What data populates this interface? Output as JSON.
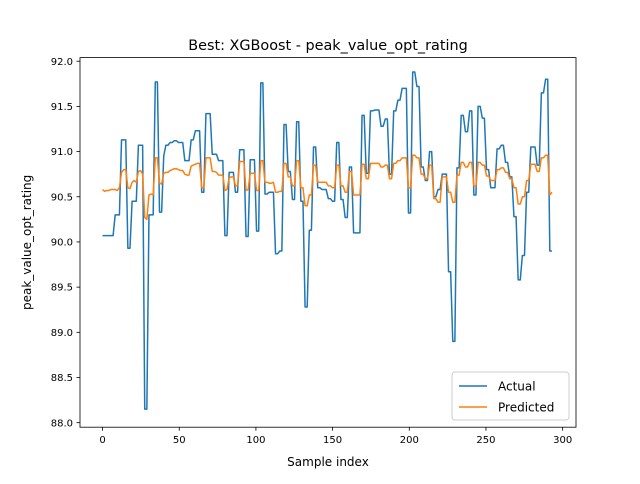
{
  "chart_data": {
    "type": "line",
    "title": "Best: XGBoost - peak_value_opt_rating",
    "xlabel": "Sample index",
    "ylabel": "peak_value_opt_rating",
    "xlim": [
      -14.7,
      308.7
    ],
    "ylim": [
      87.95,
      92.04
    ],
    "xticks": [
      0,
      50,
      100,
      150,
      200,
      250,
      300
    ],
    "xtick_labels": [
      "0",
      "50",
      "100",
      "150",
      "200",
      "250",
      "300"
    ],
    "yticks": [
      88.0,
      88.5,
      89.0,
      89.5,
      90.0,
      90.5,
      91.0,
      91.5,
      92.0
    ],
    "ytick_labels": [
      "88.0",
      "88.5",
      "89.0",
      "89.5",
      "90.0",
      "90.5",
      "91.0",
      "91.5",
      "92.0"
    ],
    "grid": false,
    "legend_position": "bottom-right",
    "series": [
      {
        "name": "Actual",
        "color": "#1f77b4",
        "values": [
          90.07,
          90.07,
          90.07,
          90.07,
          90.07,
          90.07,
          90.3,
          90.3,
          90.3,
          91.13,
          91.13,
          91.13,
          89.93,
          89.93,
          90.45,
          90.45,
          90.45,
          91.07,
          91.07,
          91.07,
          88.15,
          88.15,
          90.3,
          90.3,
          90.3,
          91.77,
          91.77,
          90.33,
          90.33,
          90.95,
          91.07,
          91.07,
          91.1,
          91.1,
          91.12,
          91.12,
          91.1,
          91.1,
          91.1,
          90.9,
          90.9,
          90.9,
          91.13,
          91.13,
          91.23,
          91.23,
          91.23,
          90.55,
          90.55,
          91.42,
          91.42,
          91.42,
          90.97,
          90.97,
          90.97,
          90.9,
          90.9,
          90.9,
          90.07,
          90.07,
          90.77,
          90.77,
          90.77,
          90.55,
          90.55,
          91.02,
          91.02,
          91.02,
          90.06,
          90.06,
          90.91,
          90.91,
          90.91,
          90.12,
          90.12,
          91.76,
          91.76,
          90.53,
          90.53,
          90.55,
          90.55,
          90.55,
          89.87,
          89.87,
          89.9,
          89.9,
          91.3,
          91.3,
          90.78,
          90.78,
          90.47,
          90.47,
          91.33,
          91.33,
          90.45,
          90.45,
          89.28,
          89.28,
          90.13,
          90.13,
          91.05,
          91.05,
          90.6,
          90.6,
          90.58,
          90.58,
          90.58,
          90.48,
          90.48,
          90.45,
          90.45,
          91.1,
          91.1,
          90.47,
          90.47,
          90.27,
          90.27,
          90.83,
          90.83,
          90.1,
          90.1,
          90.1,
          90.1,
          91.4,
          91.4,
          90.76,
          90.76,
          91.45,
          91.45,
          91.46,
          91.46,
          91.46,
          91.28,
          91.28,
          91.36,
          91.36,
          90.75,
          90.75,
          91.45,
          91.45,
          91.57,
          91.57,
          91.7,
          91.7,
          91.7,
          90.32,
          90.32,
          91.88,
          91.88,
          91.72,
          91.72,
          90.83,
          90.83,
          90.68,
          90.68,
          91.0,
          91.0,
          90.5,
          90.5,
          90.58,
          90.58,
          90.75,
          90.75,
          90.75,
          89.67,
          89.67,
          88.9,
          88.9,
          90.82,
          90.82,
          91.4,
          91.4,
          91.22,
          91.22,
          91.45,
          91.45,
          90.52,
          90.52,
          91.5,
          91.5,
          91.37,
          91.37,
          90.8,
          90.8,
          90.6,
          90.6,
          90.6,
          91.03,
          91.03,
          91.07,
          91.07,
          90.88,
          90.88,
          90.72,
          90.72,
          90.28,
          90.28,
          89.58,
          89.58,
          89.85,
          89.85,
          90.55,
          90.55,
          91.05,
          91.05,
          91.05,
          90.85,
          90.85,
          91.65,
          91.65,
          91.8,
          91.8,
          89.9,
          89.9
        ]
      },
      {
        "name": "Predicted",
        "color": "#ff7f0e",
        "values": [
          90.58,
          90.56,
          90.57,
          90.57,
          90.58,
          90.58,
          90.58,
          90.57,
          90.6,
          90.77,
          90.8,
          90.8,
          90.6,
          90.59,
          90.66,
          90.68,
          90.66,
          90.78,
          90.79,
          90.75,
          90.27,
          90.25,
          90.52,
          90.53,
          90.52,
          90.93,
          90.93,
          90.65,
          90.64,
          90.76,
          90.77,
          90.77,
          90.79,
          90.8,
          90.81,
          90.81,
          90.8,
          90.79,
          90.79,
          90.75,
          90.74,
          90.74,
          90.84,
          90.85,
          90.86,
          90.87,
          90.87,
          90.6,
          90.6,
          90.93,
          90.93,
          90.93,
          90.78,
          90.78,
          90.77,
          90.74,
          90.74,
          90.74,
          90.57,
          90.58,
          90.71,
          90.72,
          90.72,
          90.62,
          90.62,
          90.89,
          90.89,
          90.89,
          90.57,
          90.58,
          90.76,
          90.76,
          90.76,
          90.57,
          90.57,
          90.9,
          90.9,
          90.66,
          90.66,
          90.65,
          90.65,
          90.66,
          90.55,
          90.55,
          90.56,
          90.56,
          90.87,
          90.87,
          90.72,
          90.72,
          90.62,
          90.62,
          90.9,
          90.9,
          90.6,
          90.6,
          90.4,
          90.4,
          90.52,
          90.52,
          90.85,
          90.85,
          90.66,
          90.66,
          90.66,
          90.66,
          90.66,
          90.62,
          90.62,
          90.6,
          90.6,
          90.85,
          90.85,
          90.62,
          90.62,
          90.55,
          90.55,
          90.78,
          90.78,
          90.52,
          90.52,
          90.52,
          90.52,
          90.86,
          90.86,
          90.7,
          90.7,
          90.87,
          90.87,
          90.87,
          90.87,
          90.87,
          90.83,
          90.83,
          90.85,
          90.85,
          90.7,
          90.7,
          90.87,
          90.87,
          90.9,
          90.9,
          90.93,
          90.93,
          90.93,
          90.6,
          90.6,
          90.96,
          90.96,
          90.93,
          90.93,
          90.75,
          90.75,
          90.7,
          90.7,
          90.85,
          90.85,
          90.48,
          90.48,
          90.44,
          90.44,
          90.72,
          90.72,
          90.72,
          90.55,
          90.55,
          90.44,
          90.44,
          90.74,
          90.74,
          90.88,
          90.88,
          90.83,
          90.83,
          90.88,
          90.88,
          90.62,
          90.62,
          90.88,
          90.88,
          90.85,
          90.85,
          90.73,
          90.73,
          90.68,
          90.68,
          90.68,
          90.8,
          90.8,
          90.82,
          90.82,
          90.77,
          90.77,
          90.7,
          90.7,
          90.6,
          90.6,
          90.42,
          90.42,
          90.5,
          90.5,
          90.68,
          90.68,
          90.86,
          90.86,
          90.86,
          90.78,
          90.78,
          90.93,
          90.93,
          90.96,
          90.96,
          90.52,
          90.55
        ]
      }
    ]
  }
}
